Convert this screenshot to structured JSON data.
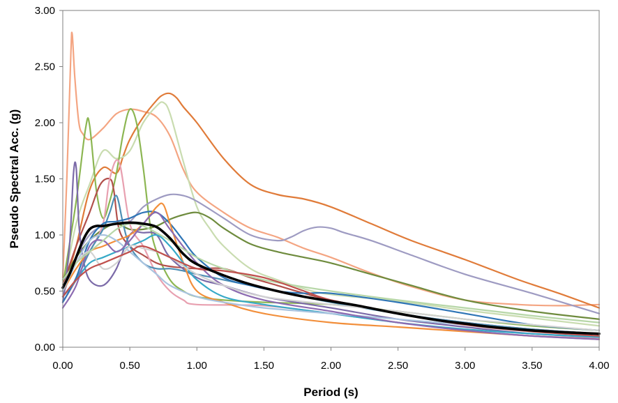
{
  "chart_data": {
    "type": "line",
    "title": "",
    "xlabel": "Period (s)",
    "ylabel": "Pseudo Spectral Acc. (g)",
    "xlim": [
      0,
      4
    ],
    "ylim": [
      0,
      3
    ],
    "xticks": [
      "0.00",
      "0.50",
      "1.00",
      "1.50",
      "2.00",
      "2.50",
      "3.00",
      "3.50",
      "4.00"
    ],
    "yticks": [
      "0.00",
      "0.50",
      "1.00",
      "1.50",
      "2.00",
      "2.50",
      "3.00"
    ],
    "grid": false,
    "legend": "none",
    "series": [
      {
        "color": "#f4a582",
        "width": 2.2,
        "x": [
          0,
          0.03,
          0.06,
          0.07,
          0.09,
          0.12,
          0.15,
          0.2,
          0.3,
          0.4,
          0.5,
          0.6,
          0.7,
          0.8,
          0.9,
          1.0,
          1.2,
          1.4,
          1.6,
          1.8,
          2.0,
          2.3,
          2.6,
          3.0,
          3.4,
          3.7,
          4.0
        ],
        "y": [
          0.62,
          1.5,
          2.6,
          2.79,
          2.4,
          2.0,
          1.9,
          1.85,
          1.95,
          2.08,
          2.12,
          2.1,
          2.05,
          1.88,
          1.58,
          1.38,
          1.2,
          1.06,
          0.98,
          0.88,
          0.8,
          0.66,
          0.54,
          0.42,
          0.38,
          0.37,
          0.38
        ]
      },
      {
        "color": "#e07b39",
        "width": 2.2,
        "x": [
          0,
          0.1,
          0.2,
          0.3,
          0.4,
          0.45,
          0.5,
          0.6,
          0.7,
          0.75,
          0.8,
          0.85,
          0.9,
          1.0,
          1.2,
          1.4,
          1.6,
          1.8,
          2.0,
          2.3,
          2.6,
          3.0,
          3.4,
          3.7,
          4.0
        ],
        "y": [
          0.5,
          0.9,
          1.4,
          1.6,
          1.55,
          1.7,
          1.85,
          2.05,
          2.2,
          2.25,
          2.26,
          2.22,
          2.14,
          2.0,
          1.68,
          1.45,
          1.36,
          1.32,
          1.25,
          1.1,
          0.95,
          0.78,
          0.6,
          0.48,
          0.35
        ]
      },
      {
        "color": "#c9dcb0",
        "width": 2.2,
        "x": [
          0,
          0.1,
          0.2,
          0.3,
          0.4,
          0.5,
          0.6,
          0.7,
          0.75,
          0.8,
          0.9,
          1.0,
          1.1,
          1.2,
          1.4,
          1.6,
          1.8,
          2.0,
          2.5,
          3.0,
          3.5,
          4.0
        ],
        "y": [
          0.5,
          1.1,
          1.45,
          1.75,
          1.68,
          1.75,
          2.0,
          2.15,
          2.18,
          2.08,
          1.65,
          1.25,
          1.05,
          0.9,
          0.7,
          0.6,
          0.52,
          0.47,
          0.41,
          0.33,
          0.26,
          0.19
        ]
      },
      {
        "color": "#8cb652",
        "width": 2.2,
        "x": [
          0,
          0.1,
          0.17,
          0.2,
          0.25,
          0.3,
          0.35,
          0.4,
          0.45,
          0.5,
          0.55,
          0.6,
          0.65,
          0.7,
          0.8,
          0.9,
          1.0,
          1.2,
          1.5,
          2.0,
          2.5,
          3.0,
          3.5,
          4.0
        ],
        "y": [
          0.55,
          1.3,
          1.95,
          1.98,
          1.4,
          1.15,
          1.3,
          1.55,
          1.9,
          2.12,
          2.0,
          1.6,
          1.1,
          0.85,
          0.6,
          0.5,
          0.45,
          0.42,
          0.4,
          0.38,
          0.32,
          0.25,
          0.19,
          0.15
        ]
      },
      {
        "color": "#9e9bc2",
        "width": 2.2,
        "x": [
          0,
          0.1,
          0.2,
          0.3,
          0.4,
          0.5,
          0.6,
          0.7,
          0.8,
          0.9,
          1.0,
          1.2,
          1.4,
          1.6,
          1.7,
          1.8,
          1.9,
          2.0,
          2.1,
          2.3,
          2.6,
          3.0,
          3.5,
          4.0
        ],
        "y": [
          0.45,
          0.8,
          1.0,
          1.08,
          1.1,
          1.12,
          1.25,
          1.32,
          1.36,
          1.35,
          1.3,
          1.15,
          1.0,
          0.95,
          0.98,
          1.04,
          1.07,
          1.06,
          1.02,
          0.95,
          0.82,
          0.65,
          0.48,
          0.3
        ]
      },
      {
        "color": "#6e8b3d",
        "width": 2.2,
        "x": [
          0,
          0.1,
          0.2,
          0.3,
          0.4,
          0.5,
          0.6,
          0.7,
          0.8,
          0.9,
          1.0,
          1.1,
          1.2,
          1.4,
          1.6,
          1.8,
          2.0,
          2.3,
          2.6,
          3.0,
          3.5,
          4.0
        ],
        "y": [
          0.6,
          0.8,
          0.95,
          1.05,
          1.1,
          1.05,
          1.05,
          1.08,
          1.14,
          1.18,
          1.2,
          1.15,
          1.06,
          0.92,
          0.85,
          0.8,
          0.75,
          0.65,
          0.55,
          0.42,
          0.32,
          0.25
        ]
      },
      {
        "color": "#b2504b",
        "width": 2.2,
        "x": [
          0,
          0.1,
          0.2,
          0.28,
          0.35,
          0.38,
          0.42,
          0.5,
          0.6,
          0.7,
          0.8,
          1.0,
          1.2,
          1.4,
          1.6,
          1.8,
          2.0,
          2.5,
          3.0,
          3.5,
          4.0
        ],
        "y": [
          0.55,
          0.9,
          1.2,
          1.45,
          1.5,
          1.4,
          1.05,
          0.9,
          0.82,
          0.75,
          0.72,
          0.7,
          0.7,
          0.62,
          0.55,
          0.48,
          0.42,
          0.3,
          0.22,
          0.16,
          0.12
        ]
      },
      {
        "color": "#e8a0b0",
        "width": 2.2,
        "x": [
          0,
          0.1,
          0.2,
          0.3,
          0.35,
          0.42,
          0.5,
          0.6,
          0.7,
          0.8,
          0.9,
          1.0,
          1.5,
          2.0,
          2.5,
          3.0,
          3.5,
          4.0
        ],
        "y": [
          0.4,
          0.6,
          0.85,
          1.1,
          1.5,
          1.65,
          1.1,
          0.9,
          0.65,
          0.5,
          0.42,
          0.38,
          0.37,
          0.3,
          0.22,
          0.15,
          0.1,
          0.08
        ]
      },
      {
        "color": "#7b6aa8",
        "width": 2.2,
        "x": [
          0,
          0.05,
          0.08,
          0.1,
          0.12,
          0.15,
          0.2,
          0.3,
          0.4,
          0.5,
          0.6,
          0.7,
          0.8,
          1.0,
          1.2,
          1.5,
          2.0,
          2.5,
          3.0,
          3.5,
          4.0
        ],
        "y": [
          0.4,
          0.9,
          1.55,
          1.6,
          1.1,
          0.8,
          0.6,
          0.55,
          0.7,
          1.0,
          1.02,
          1.0,
          0.8,
          0.62,
          0.55,
          0.45,
          0.35,
          0.25,
          0.18,
          0.12,
          0.09
        ]
      },
      {
        "color": "#4e8fb5",
        "width": 2.2,
        "x": [
          0,
          0.1,
          0.2,
          0.3,
          0.35,
          0.4,
          0.45,
          0.5,
          0.6,
          0.7,
          0.8,
          0.9,
          1.0,
          1.2,
          1.4,
          1.6,
          1.8,
          2.0,
          2.5,
          3.0,
          3.5,
          4.0
        ],
        "y": [
          0.45,
          0.6,
          0.85,
          1.05,
          1.2,
          1.35,
          1.1,
          0.9,
          0.75,
          0.7,
          0.7,
          0.68,
          0.65,
          0.6,
          0.55,
          0.5,
          0.45,
          0.4,
          0.3,
          0.22,
          0.16,
          0.12
        ]
      },
      {
        "color": "#2e75b6",
        "width": 2.2,
        "x": [
          0,
          0.1,
          0.2,
          0.3,
          0.4,
          0.5,
          0.6,
          0.7,
          0.8,
          0.9,
          1.0,
          1.2,
          1.4,
          1.6,
          1.8,
          2.0,
          2.5,
          3.0,
          3.5,
          4.0
        ],
        "y": [
          0.4,
          0.62,
          0.95,
          1.1,
          1.12,
          1.15,
          1.2,
          1.2,
          1.1,
          0.95,
          0.8,
          0.62,
          0.55,
          0.5,
          0.48,
          0.48,
          0.4,
          0.3,
          0.2,
          0.15
        ]
      },
      {
        "color": "#f28f3b",
        "width": 2.2,
        "x": [
          0,
          0.1,
          0.2,
          0.3,
          0.4,
          0.5,
          0.6,
          0.7,
          0.75,
          0.8,
          0.9,
          1.0,
          1.2,
          1.5,
          2.0,
          2.5,
          3.0,
          3.5,
          4.0
        ],
        "y": [
          0.5,
          0.7,
          0.85,
          0.9,
          0.95,
          1.0,
          1.1,
          1.25,
          1.27,
          1.1,
          0.75,
          0.5,
          0.4,
          0.3,
          0.22,
          0.18,
          0.14,
          0.1,
          0.07
        ]
      },
      {
        "color": "#36a9c7",
        "width": 2.2,
        "x": [
          0,
          0.1,
          0.2,
          0.3,
          0.4,
          0.5,
          0.6,
          0.7,
          0.8,
          0.9,
          1.0,
          1.2,
          1.5,
          2.0,
          2.5,
          3.0,
          3.5,
          4.0
        ],
        "y": [
          0.45,
          0.6,
          0.75,
          0.8,
          0.85,
          0.9,
          0.95,
          1.0,
          0.9,
          0.75,
          0.6,
          0.45,
          0.38,
          0.3,
          0.22,
          0.16,
          0.12,
          0.09
        ]
      },
      {
        "color": "#a9c4e0",
        "width": 2.2,
        "x": [
          0,
          0.1,
          0.2,
          0.3,
          0.4,
          0.5,
          0.6,
          0.7,
          0.8,
          1.0,
          1.2,
          1.5,
          2.0,
          2.5,
          3.0,
          3.5,
          4.0
        ],
        "y": [
          0.5,
          0.75,
          0.95,
          1.0,
          0.95,
          0.85,
          0.75,
          0.65,
          0.55,
          0.45,
          0.4,
          0.35,
          0.3,
          0.25,
          0.2,
          0.15,
          0.12
        ]
      },
      {
        "color": "#8c6bb1",
        "width": 2.2,
        "x": [
          0,
          0.1,
          0.2,
          0.3,
          0.4,
          0.5,
          0.6,
          0.7,
          0.8,
          1.0,
          1.2,
          1.5,
          2.0,
          2.5,
          3.0,
          3.5,
          4.0
        ],
        "y": [
          0.35,
          0.55,
          0.9,
          0.95,
          0.85,
          0.95,
          1.1,
          1.2,
          1.05,
          0.75,
          0.55,
          0.42,
          0.32,
          0.22,
          0.15,
          0.1,
          0.07
        ]
      },
      {
        "color": "#d2d2d2",
        "width": 2.2,
        "x": [
          0,
          0.1,
          0.2,
          0.3,
          0.4,
          0.5,
          0.6,
          0.7,
          0.8,
          1.0,
          1.2,
          1.5,
          2.0,
          2.5,
          3.0,
          3.5,
          4.0
        ],
        "y": [
          0.55,
          0.75,
          0.85,
          0.7,
          0.75,
          0.9,
          0.88,
          0.85,
          0.8,
          0.65,
          0.55,
          0.45,
          0.38,
          0.32,
          0.25,
          0.2,
          0.15
        ]
      },
      {
        "color": "#b7d7a8",
        "width": 2.2,
        "x": [
          0,
          0.1,
          0.2,
          0.3,
          0.4,
          0.5,
          0.6,
          0.8,
          1.0,
          1.2,
          1.5,
          2.0,
          2.5,
          3.0,
          3.5,
          4.0
        ],
        "y": [
          0.6,
          0.75,
          0.85,
          0.95,
          1.05,
          1.1,
          1.08,
          0.95,
          0.8,
          0.7,
          0.6,
          0.5,
          0.42,
          0.35,
          0.28,
          0.22
        ]
      },
      {
        "color": "#c0504d",
        "width": 2.2,
        "x": [
          0,
          0.1,
          0.2,
          0.3,
          0.4,
          0.5,
          0.6,
          0.8,
          1.0,
          1.2,
          1.5,
          1.8,
          2.0,
          2.5,
          3.0,
          3.5,
          4.0
        ],
        "y": [
          0.45,
          0.6,
          0.7,
          0.75,
          0.8,
          0.85,
          0.9,
          0.8,
          0.7,
          0.68,
          0.62,
          0.5,
          0.42,
          0.3,
          0.2,
          0.14,
          0.1
        ]
      },
      {
        "color": "#000000",
        "width": 3.6,
        "x": [
          0,
          0.05,
          0.1,
          0.15,
          0.2,
          0.25,
          0.3,
          0.4,
          0.5,
          0.6,
          0.7,
          0.8,
          0.9,
          1.0,
          1.2,
          1.4,
          1.6,
          1.8,
          2.0,
          2.2,
          2.5,
          2.8,
          3.0,
          3.2,
          3.5,
          3.8,
          4.0
        ],
        "y": [
          0.53,
          0.65,
          0.8,
          0.95,
          1.05,
          1.08,
          1.08,
          1.1,
          1.11,
          1.1,
          1.07,
          0.97,
          0.83,
          0.74,
          0.64,
          0.56,
          0.5,
          0.45,
          0.41,
          0.37,
          0.3,
          0.24,
          0.21,
          0.18,
          0.15,
          0.13,
          0.12
        ]
      }
    ]
  }
}
